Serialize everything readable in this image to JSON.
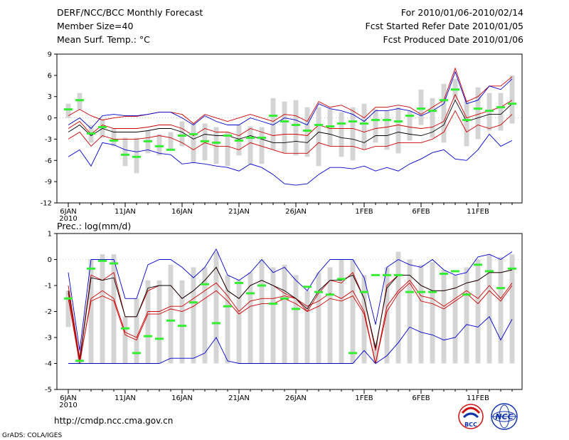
{
  "header": {
    "title": "DERF/NCC/BCC Monthly Forecast",
    "member_size": "Member Size=40",
    "variable": "Mean Surf. Temp.: °C",
    "period": "For 2010/01/06-2010/02/14",
    "started": "Fcst Started Refer Date 2010/01/05",
    "produced": "Fcst Produced Date 2010/01/06"
  },
  "footer": {
    "url": "http://cmdp.ncc.cma.gov.cn",
    "grads": "GrADS: COLA/IGES",
    "logo_bcc": "BCC",
    "logo_ncc": "NCC"
  },
  "colors": {
    "box": "#d4d4d4",
    "mean": "#000000",
    "inner": "#cc0000",
    "outer": "#0000cc",
    "obs": "#33ee33",
    "logo_red": "#cc1111",
    "logo_blue": "#1133aa"
  },
  "chart_data": [
    {
      "type": "line",
      "title": "",
      "ylabel": "Mean Surf. Temp.: °C",
      "ylim": [
        -12,
        9
      ],
      "yticks": [
        -12,
        -9,
        -6,
        -3,
        0,
        3,
        6,
        9
      ],
      "x_start_label": "6JAN",
      "x_tick_labels": [
        "6JAN",
        "11JAN",
        "16JAN",
        "21JAN",
        "26JAN",
        "1FEB",
        "6FEB",
        "11FEB"
      ],
      "x_tick_days": [
        0,
        5,
        10,
        15,
        20,
        26,
        31,
        36
      ],
      "x_year_label": "2010",
      "days": 40,
      "series": [
        {
          "name": "max",
          "values": [
            -5.5,
            -4.5,
            -6.8,
            -3.5,
            -3.8,
            -4.5,
            -4.8,
            -4.5,
            -5.0,
            -5.2,
            -6.5,
            -6.3,
            -6.5,
            -6.8,
            -7.0,
            -7.5,
            -6.5,
            -7.0,
            -8.0,
            -9.3,
            -9.5,
            -9.3,
            -8.0,
            -7.0,
            -7.0,
            -7.2,
            -6.8,
            -7.5,
            -7.0,
            -7.5,
            -6.5,
            -5.8,
            -4.9,
            -4.5,
            -5.8,
            -6.0,
            -4.5,
            -2.3,
            -4.0,
            -3.2
          ]
        },
        {
          "name": "p75",
          "values": [
            0.3,
            1.2,
            0.3,
            -0.3,
            0.0,
            0.2,
            0.2,
            0.5,
            0.8,
            0.8,
            0.5,
            -0.8,
            0.5,
            0.0,
            -0.5,
            0.0,
            0.5,
            0.0,
            -0.5,
            0.5,
            0.3,
            -0.5,
            2.3,
            1.5,
            1.8,
            1.0,
            0.0,
            1.5,
            1.5,
            1.8,
            1.5,
            0.5,
            1.5,
            2.5,
            7.0,
            2.3,
            3.0,
            4.5,
            4.5,
            5.8
          ]
        },
        {
          "name": "p25",
          "values": [
            -1.5,
            -0.5,
            -2.3,
            -1.0,
            -1.5,
            -1.5,
            -1.5,
            -1.3,
            -1.0,
            -1.0,
            -1.5,
            -2.5,
            -1.5,
            -2.0,
            -2.0,
            -2.5,
            -1.5,
            -2.0,
            -2.5,
            -2.3,
            -2.3,
            -2.5,
            -1.0,
            -1.5,
            -1.5,
            -1.5,
            -2.0,
            -1.5,
            -1.3,
            -1.0,
            -1.3,
            -1.5,
            -1.3,
            -0.5,
            3.3,
            0.0,
            0.5,
            1.0,
            1.5,
            2.5
          ]
        },
        {
          "name": "mean",
          "values": [
            -2.0,
            -1.0,
            -2.5,
            -1.5,
            -2.0,
            -2.0,
            -2.0,
            -1.8,
            -1.5,
            -1.5,
            -2.0,
            -3.0,
            -2.3,
            -2.5,
            -2.5,
            -3.0,
            -2.5,
            -3.0,
            -3.5,
            -3.5,
            -3.3,
            -3.5,
            -2.0,
            -2.3,
            -2.8,
            -3.0,
            -3.5,
            -2.5,
            -2.5,
            -2.0,
            -2.3,
            -2.5,
            -2.0,
            -1.0,
            2.5,
            -0.5,
            0.0,
            0.5,
            0.5,
            2.0
          ]
        },
        {
          "name": "p75_lower",
          "values": [
            -3.0,
            -2.0,
            -4.0,
            -2.5,
            -3.0,
            -3.0,
            -3.0,
            -2.8,
            -2.5,
            -2.8,
            -3.5,
            -4.5,
            -3.5,
            -4.0,
            -4.0,
            -4.5,
            -3.5,
            -4.0,
            -4.5,
            -5.0,
            -5.0,
            -5.0,
            -3.5,
            -4.0,
            -4.0,
            -4.0,
            -4.5,
            -4.0,
            -4.0,
            -3.5,
            -3.5,
            -3.5,
            -3.0,
            -2.0,
            1.0,
            -2.0,
            -1.0,
            -1.5,
            -1.0,
            0.5
          ]
        },
        {
          "name": "min",
          "values": [
            -1.0,
            0.0,
            -1.5,
            0.3,
            0.5,
            0.3,
            0.3,
            0.5,
            0.8,
            0.8,
            0.0,
            -1.0,
            0.3,
            -0.5,
            -1.0,
            -1.0,
            0.0,
            -0.5,
            -1.0,
            0.0,
            -0.3,
            -1.0,
            2.0,
            1.3,
            1.0,
            0.5,
            -0.5,
            1.0,
            1.0,
            1.3,
            1.0,
            0.3,
            1.0,
            2.0,
            6.5,
            2.0,
            2.5,
            4.5,
            4.0,
            5.5
          ]
        },
        {
          "name": "obs",
          "values": [
            1.2,
            2.5,
            -2.2,
            -1.3,
            -3.2,
            -5.2,
            -5.5,
            -3.3,
            -4.0,
            -4.5,
            -2.5,
            -2.3,
            -3.3,
            -3.5,
            -2.5,
            -3.2,
            -2.8,
            -2.8,
            0.3,
            -0.5,
            -1.0,
            -1.8,
            -1.0,
            -1.2,
            -0.8,
            -0.5,
            -0.8,
            -0.3,
            -0.3,
            -0.5,
            0.3,
            1.3,
            1.0,
            2.5,
            4.0,
            -0.3,
            1.3,
            1.0,
            1.5,
            2.0
          ]
        }
      ],
      "box_low": [
        0.0,
        1.2,
        -3.5,
        -2.8,
        -4.0,
        -6.8,
        -7.8,
        -5.0,
        -5.3,
        -4.5,
        -4.0,
        -6.3,
        -6.0,
        -6.5,
        -6.8,
        -5.3,
        -6.5,
        -6.5,
        -4.5,
        -5.0,
        -5.3,
        -5.5,
        -6.8,
        -4.0,
        -5.5,
        -6.0,
        -4.5,
        -3.5,
        -4.5,
        -5.0,
        -3.2,
        -1.0,
        -2.8,
        -3.5,
        2.5,
        -4.0,
        -3.0,
        -1.8,
        -1.8,
        -0.8
      ],
      "box_high": [
        2.0,
        3.5,
        -1.0,
        -0.2,
        -1.5,
        -2.8,
        -2.8,
        -1.8,
        -2.3,
        -2.0,
        -0.5,
        -0.8,
        -0.8,
        -1.3,
        -2.0,
        -1.0,
        -1.2,
        -1.3,
        2.8,
        2.3,
        2.5,
        1.5,
        1.5,
        1.3,
        0.8,
        1.5,
        2.0,
        1.3,
        1.0,
        1.5,
        1.0,
        4.0,
        2.8,
        4.8,
        5.5,
        2.5,
        4.3,
        3.5,
        3.5,
        6.0
      ]
    },
    {
      "type": "line",
      "title": "Prec.: log(mm/d)",
      "ylabel": "Prec.: log(mm/d)",
      "ylim": [
        -5,
        1
      ],
      "yticks": [
        -5,
        -4,
        -3,
        -2,
        -1,
        0,
        1
      ],
      "x_start_label": "6JAN",
      "x_tick_labels": [
        "6JAN",
        "11JAN",
        "16JAN",
        "21JAN",
        "26JAN",
        "1FEB",
        "6FEB",
        "11FEB"
      ],
      "x_tick_days": [
        0,
        5,
        10,
        15,
        20,
        26,
        31,
        36
      ],
      "x_year_label": "2010",
      "days": 40,
      "series": [
        {
          "name": "max",
          "values": [
            -0.5,
            -3.5,
            0.0,
            0.0,
            0.0,
            -1.5,
            -1.5,
            -0.2,
            0.0,
            0.0,
            -0.3,
            -0.7,
            -0.3,
            0.4,
            -0.6,
            -0.8,
            -0.5,
            0.0,
            -0.5,
            -0.3,
            -0.8,
            -1.2,
            -0.5,
            0.0,
            0.0,
            0.0,
            -0.7,
            -2.5,
            -0.3,
            0.0,
            -0.2,
            -0.3,
            0.0,
            -0.4,
            -0.6,
            -0.5,
            0.1,
            0.2,
            0.0,
            0.3
          ]
        },
        {
          "name": "p75",
          "values": [
            -1.0,
            -3.8,
            -0.6,
            -0.8,
            -0.5,
            -2.2,
            -2.2,
            -1.2,
            -1.0,
            -1.0,
            -1.5,
            -1.2,
            -0.8,
            -0.3,
            -1.2,
            -1.5,
            -1.0,
            -0.8,
            -1.0,
            -1.3,
            -1.5,
            -2.0,
            -1.3,
            -0.8,
            -0.9,
            -0.5,
            -1.5,
            -3.5,
            -1.0,
            -0.6,
            -0.6,
            -1.0,
            -1.2,
            -1.2,
            -1.1,
            -0.9,
            -0.8,
            -0.5,
            -0.5,
            -0.4
          ]
        },
        {
          "name": "p25",
          "values": [
            -1.5,
            -4.0,
            -1.5,
            -1.2,
            -1.5,
            -2.8,
            -3.0,
            -2.0,
            -2.0,
            -1.8,
            -1.8,
            -1.5,
            -1.2,
            -0.9,
            -1.4,
            -2.0,
            -1.6,
            -1.5,
            -1.5,
            -1.4,
            -1.5,
            -1.8,
            -1.6,
            -1.3,
            -1.5,
            -1.2,
            -2.0,
            -4.0,
            -1.8,
            -1.2,
            -0.8,
            -1.4,
            -1.5,
            -1.8,
            -1.5,
            -1.2,
            -1.5,
            -1.0,
            -1.5,
            -0.9
          ]
        },
        {
          "name": "mean",
          "values": [
            -1.2,
            -3.9,
            -0.7,
            -0.8,
            -0.7,
            -2.2,
            -2.2,
            -1.1,
            -1.0,
            -1.0,
            -1.5,
            -1.2,
            -0.8,
            -0.3,
            -1.2,
            -1.5,
            -1.0,
            -0.8,
            -1.0,
            -1.2,
            -1.5,
            -1.9,
            -1.2,
            -0.8,
            -0.8,
            -0.6,
            -1.5,
            -3.4,
            -1.1,
            -0.6,
            -0.6,
            -1.0,
            -1.2,
            -1.2,
            -1.1,
            -0.9,
            -0.8,
            -0.5,
            -0.5,
            -0.4
          ]
        },
        {
          "name": "p25_lower",
          "values": [
            -1.3,
            -3.9,
            -1.6,
            -1.4,
            -1.6,
            -2.9,
            -3.1,
            -2.1,
            -2.1,
            -1.9,
            -2.0,
            -1.8,
            -1.5,
            -1.2,
            -1.6,
            -2.1,
            -1.8,
            -1.7,
            -1.7,
            -1.5,
            -1.7,
            -2.0,
            -1.8,
            -1.5,
            -1.6,
            -1.4,
            -2.1,
            -4.0,
            -2.0,
            -1.3,
            -0.9,
            -1.6,
            -1.7,
            -1.9,
            -1.6,
            -1.3,
            -1.7,
            -1.2,
            -1.6,
            -1.0
          ]
        },
        {
          "name": "min",
          "values": [
            -4.0,
            -4.0,
            -4.0,
            -4.0,
            -4.0,
            -4.0,
            -4.0,
            -4.0,
            -4.0,
            -3.8,
            -3.8,
            -3.8,
            -3.6,
            -3.0,
            -3.9,
            -4.0,
            -4.0,
            -4.0,
            -4.0,
            -4.0,
            -4.0,
            -4.0,
            -4.0,
            -4.0,
            -4.0,
            -4.0,
            -3.5,
            -4.0,
            -3.7,
            -3.2,
            -2.6,
            -2.8,
            -2.9,
            -3.1,
            -3.0,
            -2.5,
            -2.6,
            -2.2,
            -3.1,
            -2.3
          ]
        },
        {
          "name": "obs",
          "values": [
            -1.5,
            -3.9,
            -0.35,
            -0.05,
            -0.15,
            -2.65,
            -3.6,
            -2.95,
            -3.05,
            -2.35,
            -2.55,
            -1.65,
            -0.95,
            -2.45,
            -1.8,
            -0.9,
            -1.3,
            -1.0,
            -1.7,
            -1.5,
            -1.9,
            -1.05,
            -1.25,
            -1.35,
            -0.75,
            -3.6,
            -1.25,
            -0.6,
            -0.6,
            -0.6,
            -1.25,
            -1.25,
            -1.25,
            -0.55,
            -0.45,
            -1.35,
            -0.2,
            -0.45,
            -1.1,
            -0.35
          ]
        }
      ],
      "box_low": [
        -2.6,
        -4.0,
        -4.0,
        -4.0,
        -4.0,
        -4.0,
        -4.0,
        -4.0,
        -4.0,
        -4.0,
        -4.0,
        -4.0,
        -4.0,
        -4.0,
        -4.0,
        -4.0,
        -4.0,
        -4.0,
        -4.0,
        -4.0,
        -4.0,
        -4.0,
        -4.0,
        -4.0,
        -4.0,
        -4.0,
        -4.0,
        -4.0,
        -4.0,
        -4.0,
        -4.0,
        -4.0,
        -4.0,
        -4.0,
        -4.0,
        -4.0,
        -4.0,
        -4.0,
        -4.0,
        -4.0
      ],
      "box_high": [
        -1.2,
        -3.5,
        0.0,
        0.2,
        0.2,
        -2.2,
        -1.5,
        -0.8,
        -0.8,
        -0.2,
        -0.8,
        -0.3,
        -0.3,
        0.3,
        -0.6,
        -0.8,
        -0.5,
        0.0,
        -0.3,
        -0.2,
        -0.6,
        -1.2,
        -0.5,
        -0.3,
        0.0,
        0.0,
        -0.6,
        -3.2,
        -0.3,
        0.3,
        0.0,
        -0.2,
        -0.1,
        -0.4,
        -0.6,
        -0.3,
        0.0,
        0.2,
        0.1,
        0.2
      ]
    }
  ]
}
